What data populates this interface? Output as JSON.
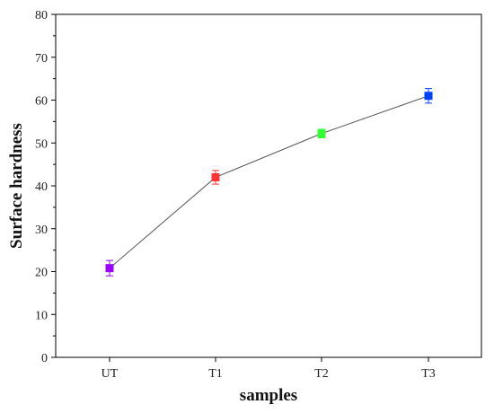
{
  "chart_data": {
    "type": "line",
    "title": "",
    "xlabel": "samples",
    "ylabel": "Surface hardness",
    "categories": [
      "UT",
      "T1",
      "T2",
      "T3"
    ],
    "series": [
      {
        "values": [
          20.8,
          42.0,
          52.2,
          61.0
        ],
        "errors": [
          1.8,
          1.6,
          1.0,
          1.7
        ],
        "point_colors": [
          "#9b00ff",
          "#ff3333",
          "#33ff33",
          "#0040ff"
        ]
      }
    ],
    "ylim": [
      0,
      80
    ],
    "yticks": [
      0,
      10,
      20,
      30,
      40,
      50,
      60,
      70,
      80
    ],
    "grid": false,
    "legend": "none",
    "line_color": "#555555"
  }
}
